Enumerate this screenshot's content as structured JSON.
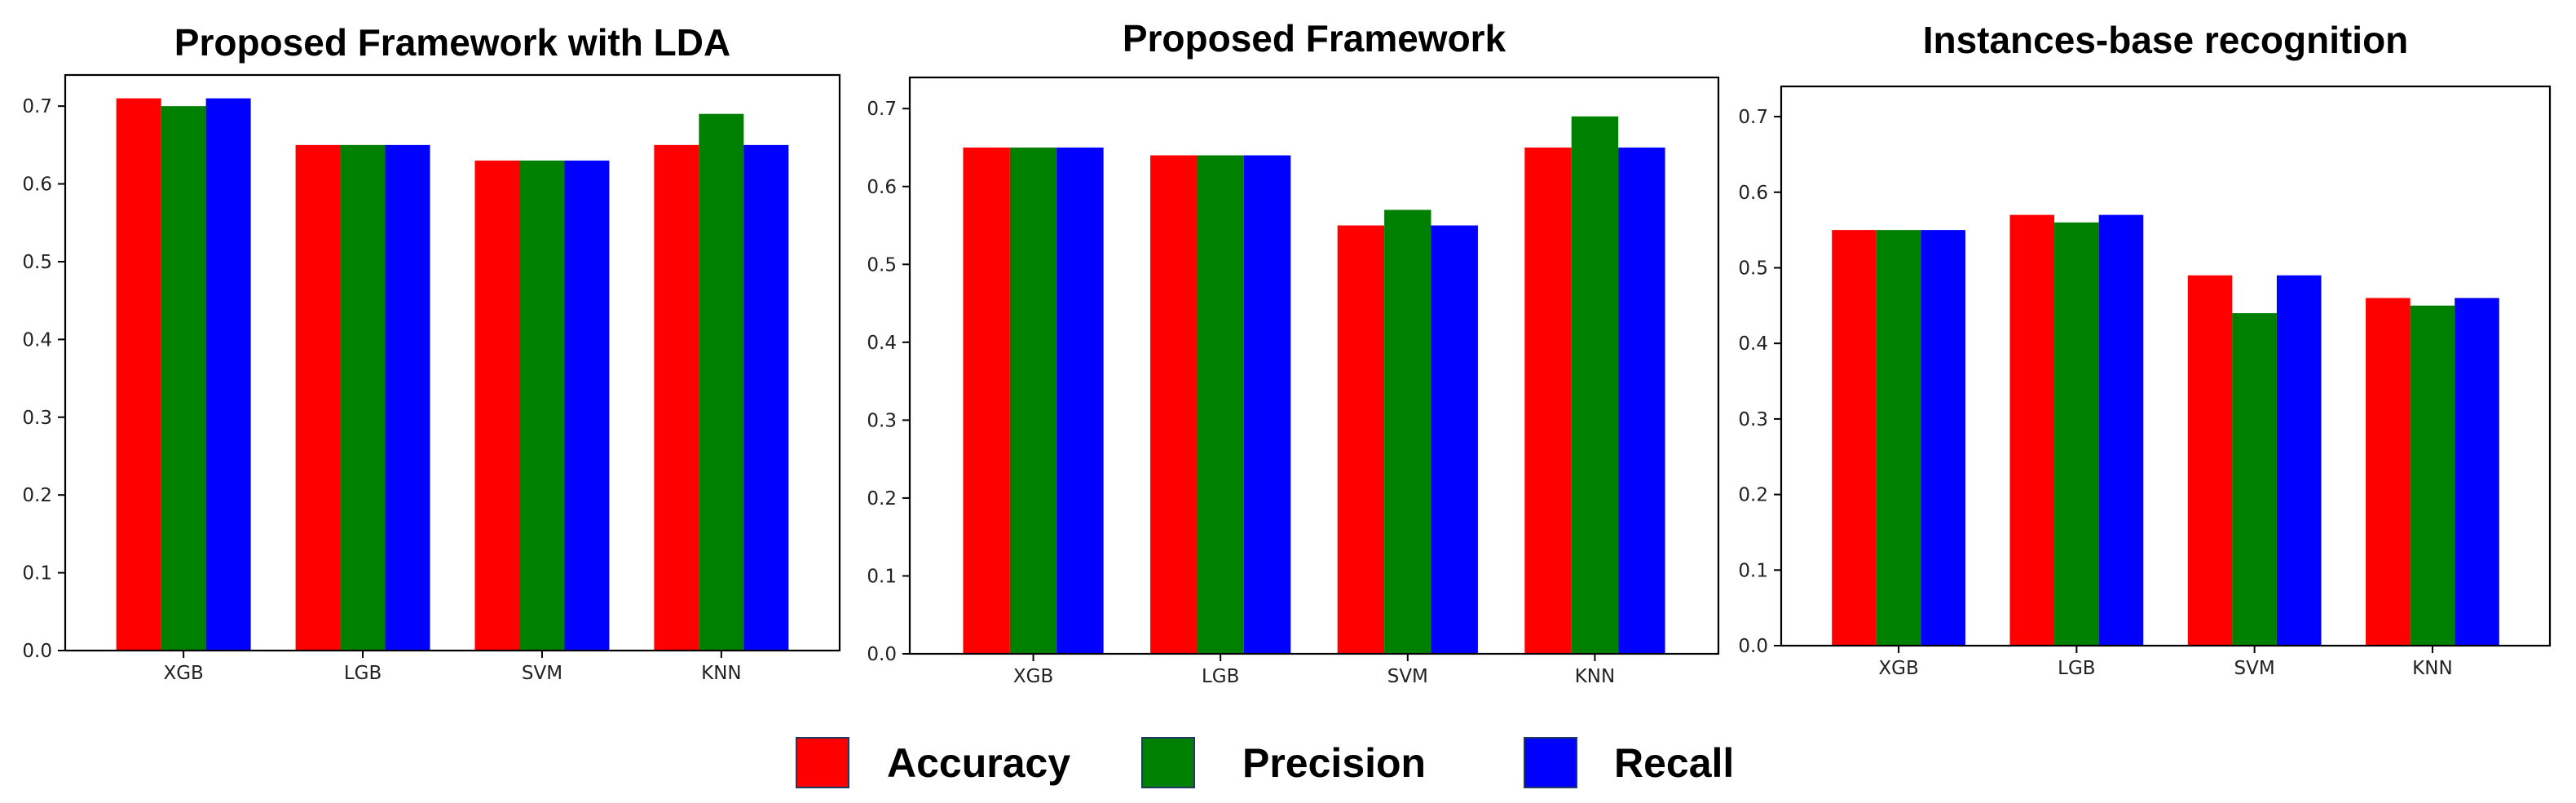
{
  "chart_data": [
    {
      "type": "bar",
      "title": "Proposed Framework with LDA",
      "xlabel": "",
      "ylabel": "",
      "categories": [
        "XGB",
        "LGB",
        "SVM",
        "KNN"
      ],
      "ylim": [
        0,
        0.74
      ],
      "yticks": [
        "0.0",
        "0.1",
        "0.2",
        "0.3",
        "0.4",
        "0.5",
        "0.6",
        "0.7"
      ],
      "grid": false,
      "series": [
        {
          "name": "Accuracy",
          "color": "#ff0000",
          "values": [
            0.71,
            0.65,
            0.63,
            0.65
          ]
        },
        {
          "name": "Precision",
          "color": "#008000",
          "values": [
            0.7,
            0.65,
            0.63,
            0.69
          ]
        },
        {
          "name": "Recall",
          "color": "#0000ff",
          "values": [
            0.71,
            0.65,
            0.63,
            0.65
          ]
        }
      ]
    },
    {
      "type": "bar",
      "title": "Proposed Framework",
      "xlabel": "",
      "ylabel": "",
      "categories": [
        "XGB",
        "LGB",
        "SVM",
        "KNN"
      ],
      "ylim": [
        0,
        0.74
      ],
      "yticks": [
        "0.0",
        "0.1",
        "0.2",
        "0.3",
        "0.4",
        "0.5",
        "0.6",
        "0.7"
      ],
      "grid": false,
      "series": [
        {
          "name": "Accuracy",
          "color": "#ff0000",
          "values": [
            0.65,
            0.64,
            0.55,
            0.65
          ]
        },
        {
          "name": "Precision",
          "color": "#008000",
          "values": [
            0.65,
            0.64,
            0.57,
            0.69
          ]
        },
        {
          "name": "Recall",
          "color": "#0000ff",
          "values": [
            0.65,
            0.64,
            0.55,
            0.65
          ]
        }
      ]
    },
    {
      "type": "bar",
      "title": "Instances-base recognition",
      "xlabel": "",
      "ylabel": "",
      "categories": [
        "XGB",
        "LGB",
        "SVM",
        "KNN"
      ],
      "ylim": [
        0,
        0.74
      ],
      "yticks": [
        "0.0",
        "0.1",
        "0.2",
        "0.3",
        "0.4",
        "0.5",
        "0.6",
        "0.7"
      ],
      "grid": false,
      "series": [
        {
          "name": "Accuracy",
          "color": "#ff0000",
          "values": [
            0.55,
            0.57,
            0.49,
            0.46
          ]
        },
        {
          "name": "Precision",
          "color": "#008000",
          "values": [
            0.55,
            0.56,
            0.44,
            0.45
          ]
        },
        {
          "name": "Recall",
          "color": "#0000ff",
          "values": [
            0.55,
            0.57,
            0.49,
            0.46
          ]
        }
      ]
    }
  ],
  "legend": {
    "placement": "bottom-center",
    "items": [
      {
        "label": "Accuracy",
        "color": "#ff0000"
      },
      {
        "label": "Precision",
        "color": "#008000"
      },
      {
        "label": "Recall",
        "color": "#0000ff"
      }
    ]
  }
}
